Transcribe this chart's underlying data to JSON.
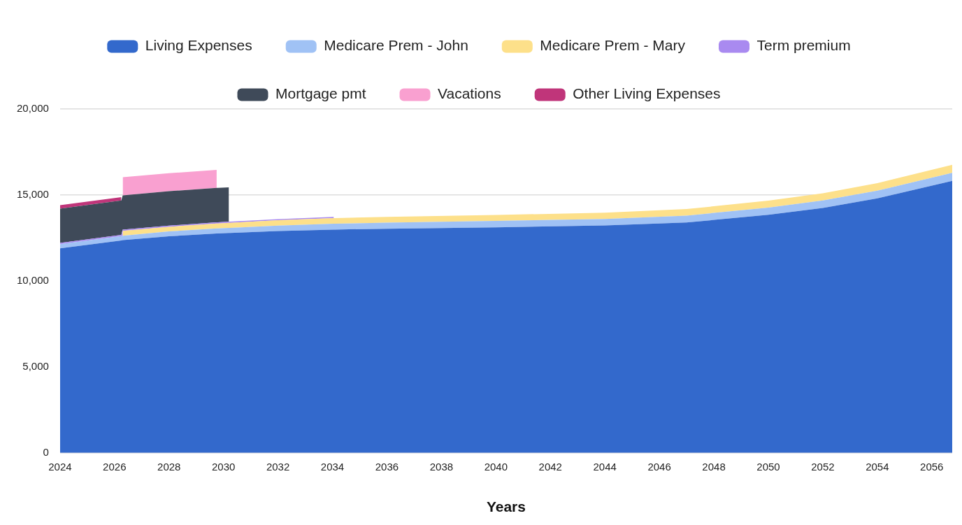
{
  "chart_data": {
    "type": "area",
    "stacked": true,
    "xlabel": "Years",
    "legend": "top",
    "grid": "y",
    "marker": "none",
    "x": [
      2024,
      2026.25,
      2026.3,
      2028,
      2029.75,
      2029.8,
      2030.2,
      2030.25,
      2032,
      2034.05,
      2034.1,
      2036,
      2040,
      2044,
      2047,
      2050,
      2052,
      2054,
      2056.75
    ],
    "xlim": [
      2024,
      2056.75
    ],
    "xticks": [
      2024,
      2026,
      2028,
      2030,
      2032,
      2034,
      2036,
      2038,
      2040,
      2042,
      2044,
      2046,
      2048,
      2050,
      2052,
      2054,
      2056
    ],
    "ylim": [
      0,
      20000
    ],
    "yticks": [
      {
        "value": 0,
        "label": "0"
      },
      {
        "value": 5000,
        "label": "5,000"
      },
      {
        "value": 10000,
        "label": "10,000"
      },
      {
        "value": 15000,
        "label": "15,000"
      },
      {
        "value": 20000,
        "label": "20,000"
      }
    ],
    "series": [
      {
        "name": "Living Expenses",
        "color": "#3369cc",
        "values": [
          11900,
          12350,
          12370,
          12600,
          12760,
          12760,
          12790,
          12790,
          12900,
          12990,
          12990,
          13040,
          13120,
          13230,
          13400,
          13850,
          14250,
          14800,
          15820
        ]
      },
      {
        "name": "Medicare Prem - John",
        "color": "#a0c2f5",
        "values": [
          240,
          260,
          260,
          280,
          300,
          300,
          300,
          300,
          320,
          340,
          340,
          350,
          370,
          380,
          400,
          420,
          430,
          450,
          470
        ]
      },
      {
        "name": "Medicare Prem - Mary",
        "color": "#fde08a",
        "values": [
          null,
          null,
          280,
          270,
          280,
          280,
          290,
          290,
          310,
          330,
          330,
          340,
          350,
          360,
          380,
          400,
          420,
          440,
          470
        ]
      },
      {
        "name": "Term premium",
        "color": "#a98af0",
        "values": [
          70,
          70,
          70,
          70,
          70,
          70,
          70,
          70,
          70,
          70,
          null,
          null,
          null,
          null,
          null,
          null,
          null,
          null,
          null
        ]
      },
      {
        "name": "Mortgage pmt",
        "color": "#3f4a59",
        "values": [
          2000,
          2000,
          2000,
          2000,
          2000,
          2000,
          2000,
          null,
          null,
          null,
          null,
          null,
          null,
          null,
          null,
          null,
          null,
          null,
          null
        ]
      },
      {
        "name": "Vacations",
        "color": "#f9a0d0",
        "values": [
          null,
          null,
          1050,
          1050,
          1050,
          null,
          null,
          null,
          null,
          null,
          null,
          null,
          null,
          null,
          null,
          null,
          null,
          null,
          null
        ]
      },
      {
        "name": "Other Living Expenses",
        "color": "#c0357a",
        "values": [
          200,
          200,
          null,
          null,
          null,
          null,
          null,
          null,
          null,
          null,
          null,
          null,
          null,
          null,
          null,
          null,
          null,
          null,
          null
        ]
      }
    ]
  }
}
